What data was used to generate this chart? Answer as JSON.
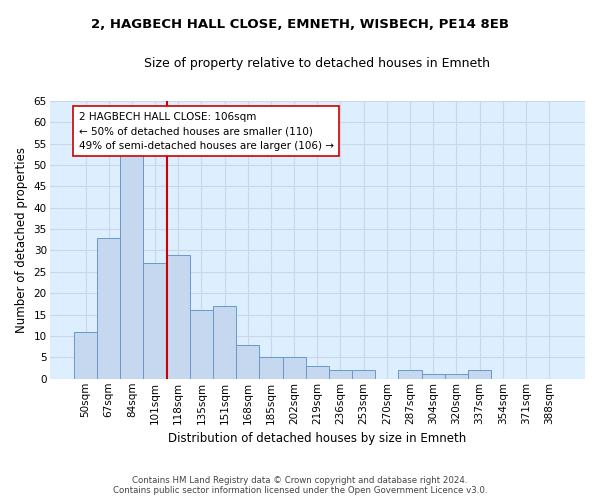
{
  "title_line1": "2, HAGBECH HALL CLOSE, EMNETH, WISBECH, PE14 8EB",
  "title_line2": "Size of property relative to detached houses in Emneth",
  "xlabel": "Distribution of detached houses by size in Emneth",
  "ylabel": "Number of detached properties",
  "bar_values": [
    11,
    33,
    54,
    27,
    29,
    16,
    17,
    8,
    5,
    5,
    3,
    2,
    2,
    0,
    2,
    1,
    1,
    2,
    0,
    0,
    0
  ],
  "bar_color": "#c5d8f0",
  "bar_edge_color": "#6699cc",
  "vline_color": "#cc0000",
  "annotation_text": "2 HAGBECH HALL CLOSE: 106sqm\n← 50% of detached houses are smaller (110)\n49% of semi-detached houses are larger (106) →",
  "annotation_box_color": "#ffffff",
  "annotation_box_edge": "#cc0000",
  "ylim": [
    0,
    65
  ],
  "yticks": [
    0,
    5,
    10,
    15,
    20,
    25,
    30,
    35,
    40,
    45,
    50,
    55,
    60,
    65
  ],
  "grid_color": "#c8d8e8",
  "background_color": "#ddeeff",
  "footer_text": "Contains HM Land Registry data © Crown copyright and database right 2024.\nContains public sector information licensed under the Open Government Licence v3.0.",
  "all_labels": [
    "50sqm",
    "67sqm",
    "84sqm",
    "101sqm",
    "118sqm",
    "135sqm",
    "151sqm",
    "168sqm",
    "185sqm",
    "202sqm",
    "219sqm",
    "236sqm",
    "253sqm",
    "270sqm",
    "287sqm",
    "304sqm",
    "320sqm",
    "337sqm",
    "354sqm",
    "371sqm",
    "388sqm"
  ]
}
